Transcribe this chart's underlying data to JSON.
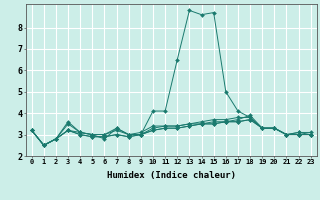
{
  "xlabel": "Humidex (Indice chaleur)",
  "background_color": "#cceee8",
  "grid_color": "#ffffff",
  "line_color": "#1a7a6e",
  "xlim": [
    -0.5,
    23.5
  ],
  "ylim": [
    2.0,
    9.1
  ],
  "xticks": [
    0,
    1,
    2,
    3,
    4,
    5,
    6,
    7,
    8,
    9,
    10,
    11,
    12,
    13,
    14,
    15,
    16,
    17,
    18,
    19,
    20,
    21,
    22,
    23
  ],
  "yticks": [
    2,
    3,
    4,
    5,
    6,
    7,
    8
  ],
  "series": [
    [
      3.2,
      2.5,
      2.8,
      3.6,
      3.1,
      3.0,
      3.0,
      3.3,
      3.0,
      3.0,
      4.1,
      4.1,
      6.5,
      8.8,
      8.6,
      8.7,
      5.0,
      4.1,
      3.8,
      3.3,
      3.3,
      3.0,
      3.1,
      3.1
    ],
    [
      3.2,
      2.5,
      2.8,
      3.2,
      3.1,
      3.0,
      3.0,
      3.2,
      3.0,
      3.0,
      3.3,
      3.4,
      3.4,
      3.5,
      3.6,
      3.7,
      3.7,
      3.8,
      3.8,
      3.3,
      3.3,
      3.0,
      3.1,
      3.0
    ],
    [
      3.2,
      2.5,
      2.8,
      3.2,
      3.0,
      2.9,
      2.9,
      3.0,
      2.9,
      3.0,
      3.2,
      3.3,
      3.3,
      3.4,
      3.5,
      3.5,
      3.6,
      3.6,
      3.7,
      3.3,
      3.3,
      3.0,
      3.0,
      3.0
    ],
    [
      3.2,
      2.5,
      2.8,
      3.2,
      3.0,
      2.9,
      2.9,
      3.0,
      2.9,
      3.0,
      3.2,
      3.3,
      3.3,
      3.4,
      3.5,
      3.5,
      3.6,
      3.6,
      3.7,
      3.3,
      3.3,
      3.0,
      3.0,
      3.0
    ],
    [
      3.2,
      2.5,
      2.8,
      3.5,
      3.1,
      3.0,
      2.8,
      3.3,
      3.0,
      3.1,
      3.4,
      3.4,
      3.4,
      3.5,
      3.5,
      3.6,
      3.6,
      3.7,
      3.9,
      3.3,
      3.3,
      3.0,
      3.0,
      3.0
    ]
  ]
}
